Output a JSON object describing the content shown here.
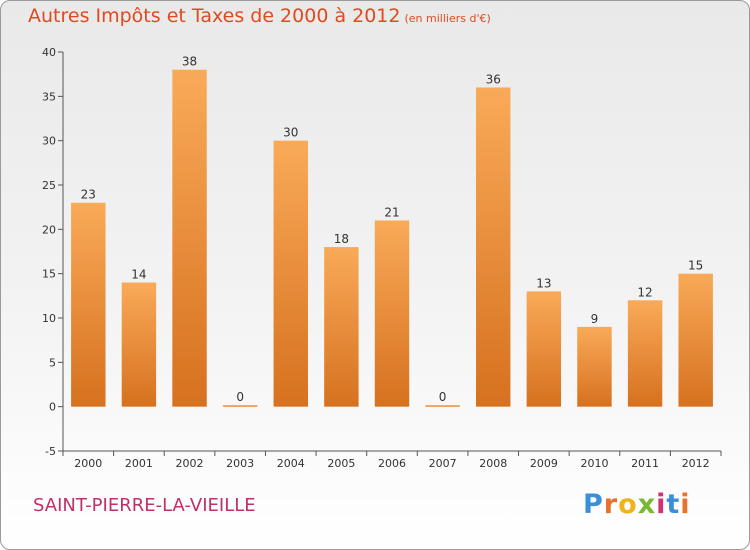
{
  "header": {
    "title": "Autres Impôts et Taxes de 2000 à 2012",
    "subtitle": "(en milliers d'€)"
  },
  "footer": {
    "commune": "SAINT-PIERRE-LA-VIEILLE",
    "logo_letters": [
      "P",
      "r",
      "o",
      "x",
      "i",
      "t",
      "i"
    ],
    "logo_colors": [
      "#3b8fd8",
      "#e8712b",
      "#f2b21a",
      "#78b832",
      "#d0326f",
      "#3b8fd8",
      "#e8712b"
    ]
  },
  "chart_data": {
    "type": "bar",
    "categories": [
      "2000",
      "2001",
      "2002",
      "2003",
      "2004",
      "2005",
      "2006",
      "2007",
      "2008",
      "2009",
      "2010",
      "2011",
      "2012"
    ],
    "values": [
      23,
      14,
      38,
      0,
      30,
      18,
      21,
      0,
      36,
      13,
      9,
      12,
      15
    ],
    "data_labels": [
      "23",
      "14",
      "38",
      "0",
      "30",
      "18",
      "21",
      "0",
      "36",
      "13",
      "9",
      "12",
      "15"
    ],
    "title": "Autres Impôts et Taxes de 2000 à 2012",
    "xlabel": "",
    "ylabel": "",
    "ylim": [
      -5,
      40
    ],
    "yticks": [
      -5,
      0,
      5,
      10,
      15,
      20,
      25,
      30,
      35,
      40
    ],
    "grid": false,
    "bar_color": "#f0973a",
    "bar_color_light": "#f9aa58",
    "bar_color_dark": "#d6711f"
  }
}
